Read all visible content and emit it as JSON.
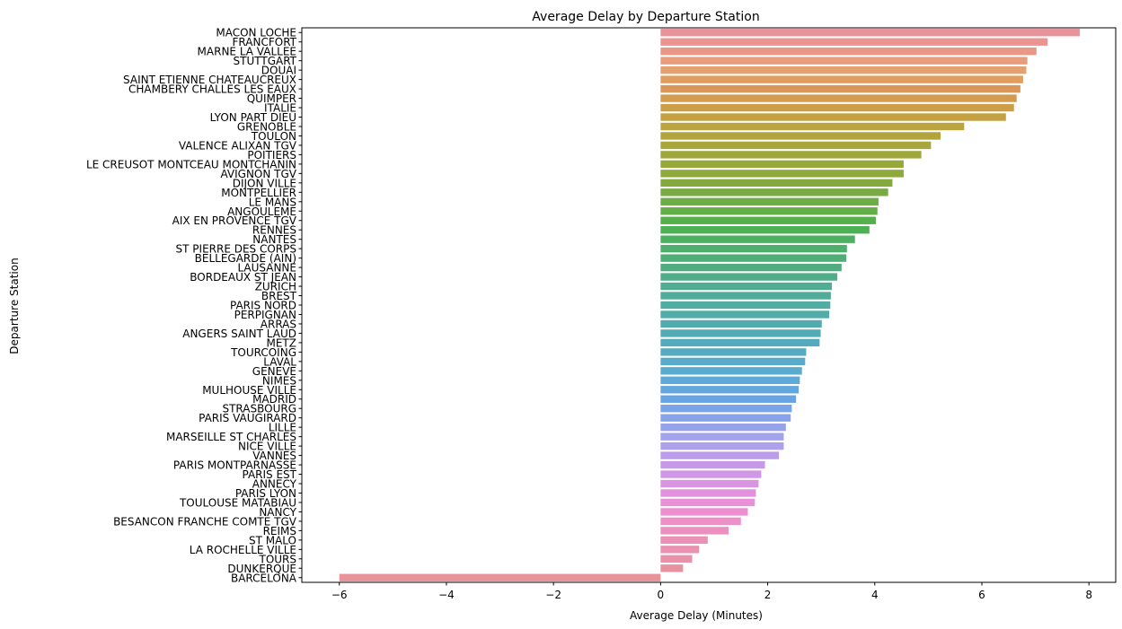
{
  "chart_data": {
    "type": "bar",
    "orientation": "horizontal",
    "title": "Average Delay by Departure Station",
    "xlabel": "Average Delay (Minutes)",
    "ylabel": "Departure Station",
    "xlim": [
      -6.7,
      8.5
    ],
    "xticks": [
      -6,
      -4,
      -2,
      0,
      2,
      4,
      6,
      8
    ],
    "xtick_labels": [
      "−6",
      "−4",
      "−2",
      "0",
      "2",
      "4",
      "6",
      "8"
    ],
    "grid": false,
    "legend": "none",
    "categories": [
      "MACON LOCHE",
      "FRANCFORT",
      "MARNE LA VALLEE",
      "STUTTGART",
      "DOUAI",
      "SAINT ETIENNE CHATEAUCREUX",
      "CHAMBERY CHALLES LES EAUX",
      "QUIMPER",
      "ITALIE",
      "LYON PART DIEU",
      "GRENOBLE",
      "TOULON",
      "VALENCE ALIXAN TGV",
      "POITIERS",
      "LE CREUSOT MONTCEAU MONTCHANIN",
      "AVIGNON TGV",
      "DIJON VILLE",
      "MONTPELLIER",
      "LE MANS",
      "ANGOULEME",
      "AIX EN PROVENCE TGV",
      "RENNES",
      "NANTES",
      "ST PIERRE DES CORPS",
      "BELLEGARDE (AIN)",
      "LAUSANNE",
      "BORDEAUX ST JEAN",
      "ZURICH",
      "BREST",
      "PARIS NORD",
      "PERPIGNAN",
      "ARRAS",
      "ANGERS SAINT LAUD",
      "METZ",
      "TOURCOING",
      "LAVAL",
      "GENEVE",
      "NIMES",
      "MULHOUSE VILLE",
      "MADRID",
      "STRASBOURG",
      "PARIS VAUGIRARD",
      "LILLE",
      "MARSEILLE ST CHARLES",
      "NICE VILLE",
      "VANNES",
      "PARIS MONTPARNASSE",
      "PARIS EST",
      "ANNECY",
      "PARIS LYON",
      "TOULOUSE MATABIAU",
      "NANCY",
      "BESANCON FRANCHE COMTE TGV",
      "REIMS",
      "ST MALO",
      "LA ROCHELLE VILLE",
      "TOURS",
      "DUNKERQUE",
      "BARCELONA"
    ],
    "values": [
      7.83,
      7.23,
      7.02,
      6.85,
      6.83,
      6.77,
      6.72,
      6.65,
      6.6,
      6.45,
      5.67,
      5.23,
      5.05,
      4.87,
      4.54,
      4.54,
      4.33,
      4.25,
      4.07,
      4.05,
      4.02,
      3.9,
      3.63,
      3.48,
      3.47,
      3.38,
      3.3,
      3.2,
      3.18,
      3.17,
      3.15,
      3.01,
      2.99,
      2.97,
      2.72,
      2.7,
      2.64,
      2.6,
      2.58,
      2.53,
      2.45,
      2.43,
      2.34,
      2.3,
      2.3,
      2.21,
      1.95,
      1.88,
      1.83,
      1.78,
      1.76,
      1.63,
      1.5,
      1.27,
      0.88,
      0.72,
      0.59,
      0.42,
      -6.0
    ],
    "colors": [
      "#e8929a",
      "#ea9591",
      "#e99886",
      "#e79d7a",
      "#e4a06f",
      "#e19c5e",
      "#d9985a",
      "#d29b4f",
      "#cc9e46",
      "#c4a041",
      "#bba33f",
      "#b2a43d",
      "#a9a63b",
      "#a0a73b",
      "#97a83b",
      "#8ea93c",
      "#84aa3e",
      "#7aab42",
      "#6ead45",
      "#62af48",
      "#55b04b",
      "#4cb153",
      "#4db060",
      "#4eaf6c",
      "#4fae76",
      "#4fad80",
      "#50ad89",
      "#50ad92",
      "#51ac99",
      "#51aca1",
      "#52aca8",
      "#52abae",
      "#53abb5",
      "#54abbb",
      "#56abc2",
      "#58abc9",
      "#5aabd0",
      "#5ea9d7",
      "#62a7de",
      "#68a4e4",
      "#78a4e8",
      "#88a3ea",
      "#96a3eb",
      "#a3a2ec",
      "#afa0ec",
      "#bb9deb",
      "#c69ae9",
      "#d097e6",
      "#da95e2",
      "#e292dd",
      "#e891d6",
      "#ec90cf",
      "#ec90c7",
      "#ec90bf",
      "#eb90b7",
      "#ea91b0",
      "#e991a8",
      "#e892a1",
      "#e8929a"
    ]
  }
}
